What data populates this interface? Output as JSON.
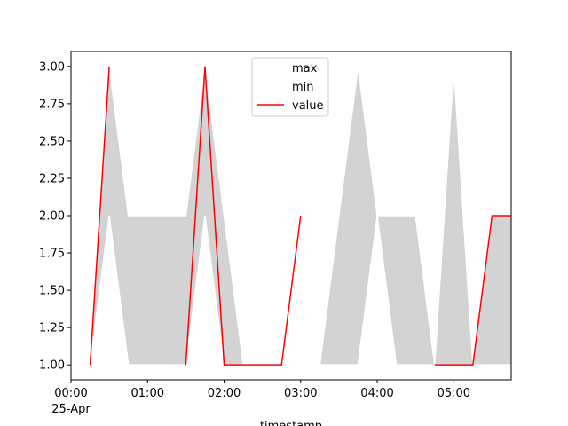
{
  "chart_data": {
    "type": "area",
    "xlabel": "timestamp",
    "x_tick_labels": [
      "00:00",
      "01:00",
      "02:00",
      "03:00",
      "04:00",
      "05:00"
    ],
    "x_tick_values_min": [
      0,
      60,
      120,
      180,
      240,
      300
    ],
    "x_date_label": "25-Apr",
    "x_unit": "minutes after 25-Apr 00:00",
    "xlim": [
      0,
      345
    ],
    "ylim": [
      0.9,
      3.1
    ],
    "y_ticks": [
      1.0,
      1.25,
      1.5,
      1.75,
      2.0,
      2.25,
      2.5,
      2.75,
      3.0
    ],
    "y_tick_labels": [
      "1.00",
      "1.25",
      "1.50",
      "1.75",
      "2.00",
      "2.25",
      "2.50",
      "2.75",
      "3.00"
    ],
    "legend": {
      "placement": "top-center",
      "entries": [
        "max",
        "min",
        "value"
      ]
    },
    "series": [
      {
        "name": "max",
        "x": [
          0,
          15,
          30,
          45,
          60,
          75,
          90,
          105,
          120,
          135,
          150,
          165,
          180,
          195,
          210,
          225,
          240,
          255,
          270,
          285,
          300,
          315,
          330,
          345
        ],
        "values": [
          2,
          1,
          3,
          2,
          2,
          2,
          2,
          3,
          2,
          1,
          1,
          1,
          2,
          1,
          2,
          3,
          2,
          2,
          2,
          1,
          3,
          1,
          2,
          2
        ]
      },
      {
        "name": "min",
        "x": [
          0,
          15,
          30,
          45,
          60,
          75,
          90,
          105,
          120,
          135,
          150,
          165,
          180,
          195,
          210,
          225,
          240,
          255,
          270,
          285,
          300,
          315,
          330,
          345
        ],
        "values": [
          2,
          1,
          2,
          1,
          1,
          1,
          1,
          2,
          1,
          1,
          1,
          1,
          2,
          1,
          1,
          1,
          2,
          1,
          1,
          1,
          1,
          1,
          1,
          1
        ]
      },
      {
        "name": "value",
        "x": [
          0,
          15,
          30,
          45,
          60,
          75,
          90,
          105,
          120,
          135,
          150,
          165,
          180,
          195,
          210,
          225,
          240,
          255,
          270,
          285,
          300,
          315,
          330,
          345
        ],
        "values": [
          null,
          1,
          3,
          null,
          1,
          null,
          1,
          3,
          1,
          1,
          1,
          1,
          2,
          null,
          null,
          null,
          null,
          null,
          null,
          1,
          1,
          1,
          2,
          2
        ]
      }
    ],
    "colors": {
      "band": "#d3d3d3",
      "value": "#ff0000",
      "max": "#ffffff",
      "min": "#ffffff"
    }
  }
}
